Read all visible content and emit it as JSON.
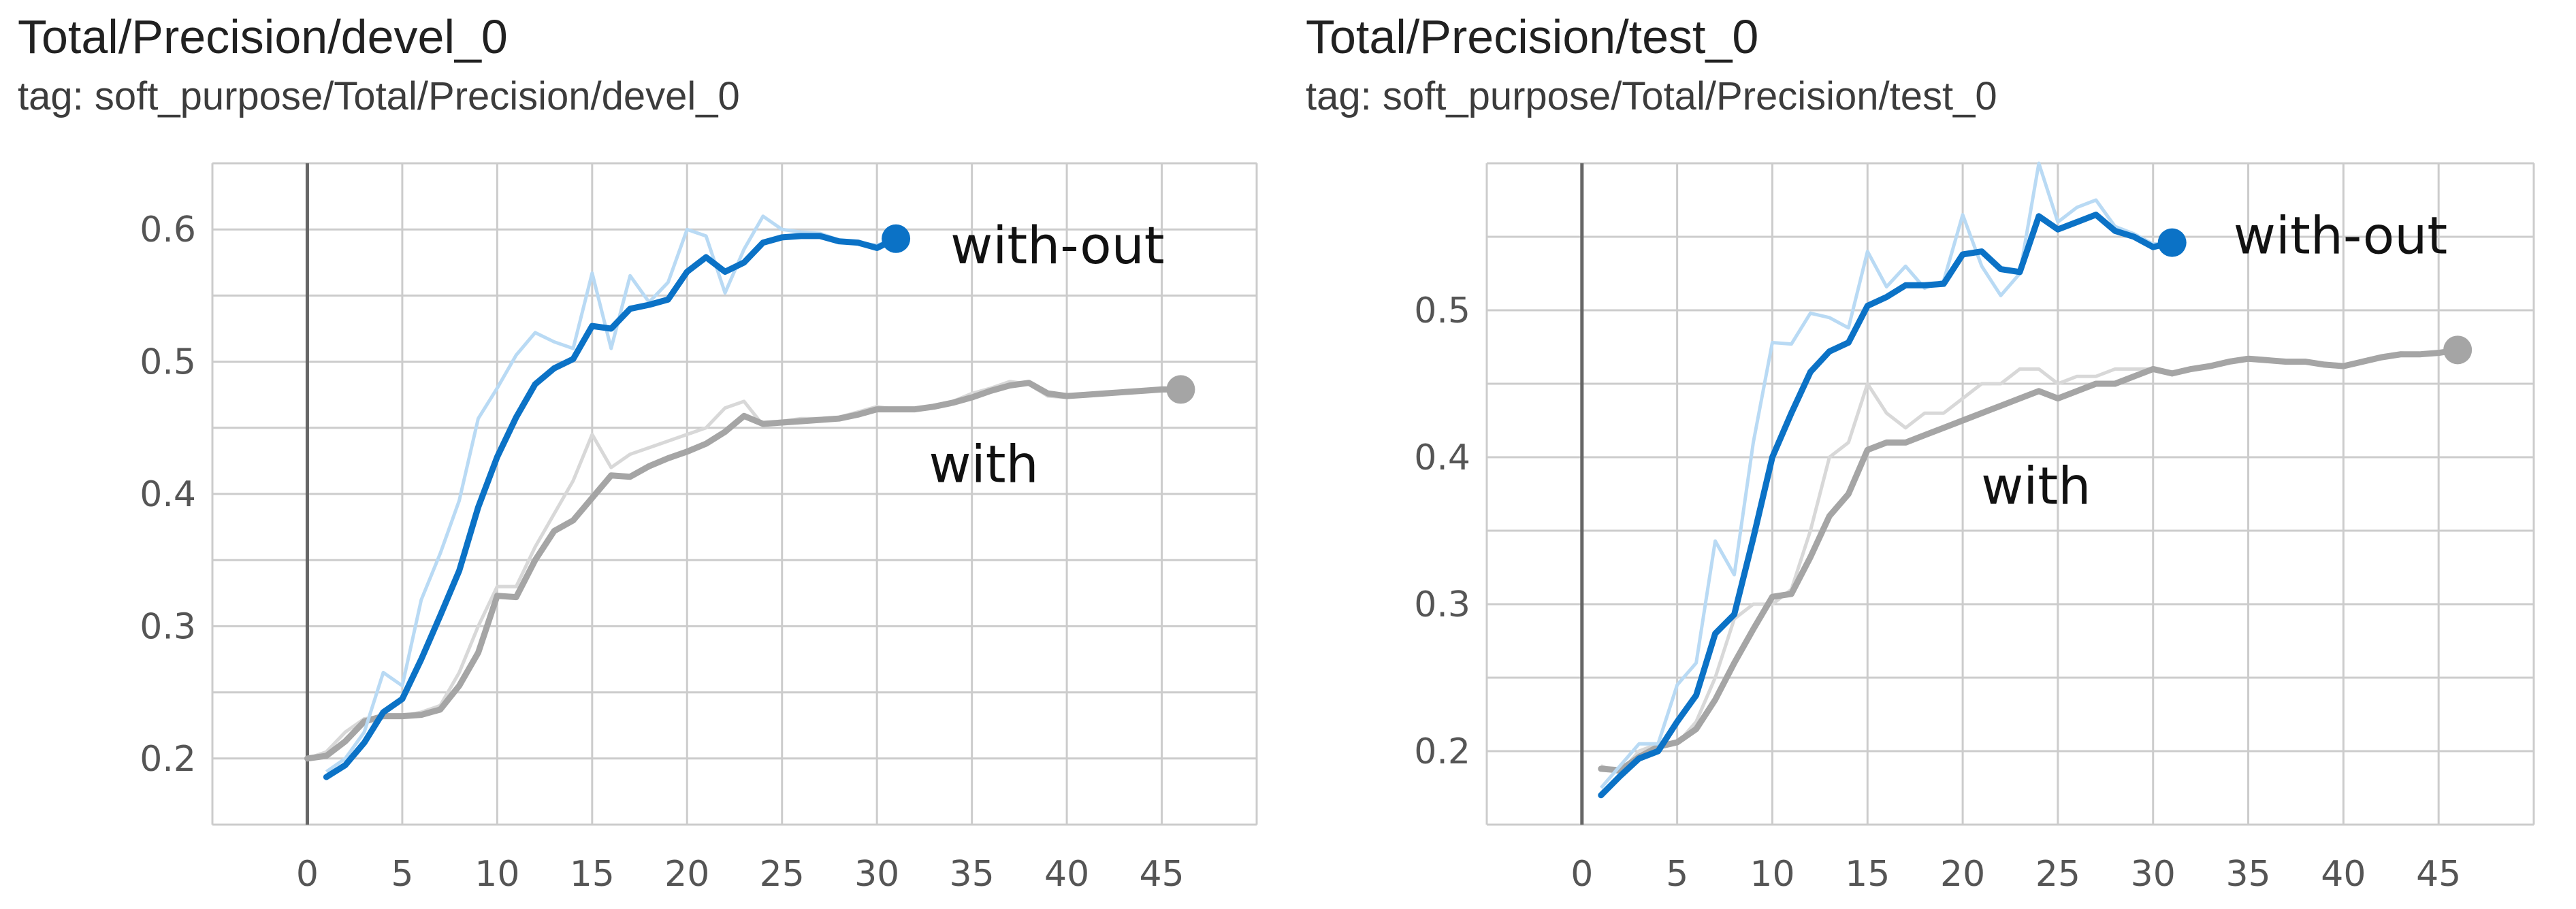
{
  "chart_data": [
    {
      "type": "line",
      "title": "Total/Precision/devel_0",
      "subtitle": "tag: soft_purpose/Total/Precision/devel_0",
      "xlim": [
        -5,
        50
      ],
      "ylim": [
        0.15,
        0.65
      ],
      "xticks": [
        0,
        5,
        10,
        15,
        20,
        25,
        30,
        35,
        40,
        45
      ],
      "yticks": [
        0.2,
        0.3,
        0.4,
        0.5,
        0.6
      ],
      "grid": true,
      "series": [
        {
          "name": "with-out",
          "color": "#0b72c6",
          "raw_color": "#b9daf4",
          "x": [
            1,
            2,
            3,
            4,
            5,
            6,
            7,
            8,
            9,
            10,
            11,
            12,
            13,
            14,
            15,
            16,
            17,
            18,
            19,
            20,
            21,
            22,
            23,
            24,
            25,
            26,
            27,
            28,
            29,
            30,
            31
          ],
          "smoothed": [
            0.186,
            0.195,
            0.212,
            0.235,
            0.245,
            0.275,
            0.308,
            0.342,
            0.39,
            0.428,
            0.458,
            0.483,
            0.495,
            0.502,
            0.527,
            0.525,
            0.54,
            0.543,
            0.547,
            0.568,
            0.579,
            0.568,
            0.575,
            0.59,
            0.594,
            0.595,
            0.595,
            0.591,
            0.59,
            0.586,
            0.593
          ],
          "raw": [
            0.19,
            0.2,
            0.22,
            0.265,
            0.255,
            0.32,
            0.355,
            0.395,
            0.457,
            0.48,
            0.505,
            0.522,
            0.515,
            0.51,
            0.567,
            0.51,
            0.565,
            0.545,
            0.56,
            0.6,
            0.595,
            0.552,
            0.585,
            0.61,
            0.6,
            0.598,
            0.597,
            0.592,
            0.59,
            0.588,
            0.593
          ]
        },
        {
          "name": "with",
          "color": "#a5a5a5",
          "raw_color": "#d8d8d8",
          "x": [
            0,
            1,
            2,
            3,
            4,
            5,
            6,
            7,
            8,
            9,
            10,
            11,
            12,
            13,
            14,
            15,
            16,
            17,
            18,
            19,
            20,
            21,
            22,
            23,
            24,
            25,
            26,
            27,
            28,
            29,
            30,
            31,
            32,
            33,
            34,
            35,
            36,
            37,
            38,
            39,
            40,
            41,
            42,
            43,
            44,
            45,
            46
          ],
          "smoothed": [
            0.2,
            0.202,
            0.213,
            0.228,
            0.232,
            0.232,
            0.233,
            0.237,
            0.255,
            0.28,
            0.323,
            0.322,
            0.35,
            0.372,
            0.38,
            0.397,
            0.414,
            0.413,
            0.421,
            0.427,
            0.432,
            0.438,
            0.447,
            0.459,
            0.453,
            0.454,
            0.455,
            0.456,
            0.457,
            0.46,
            0.464,
            0.464,
            0.464,
            0.466,
            0.469,
            0.473,
            0.478,
            0.482,
            0.484,
            0.476,
            0.474,
            0.475,
            0.476,
            0.477,
            0.478,
            0.479,
            0.479
          ],
          "raw": [
            0.2,
            0.205,
            0.22,
            0.23,
            0.232,
            0.232,
            0.235,
            0.24,
            0.265,
            0.3,
            0.33,
            0.33,
            0.36,
            0.385,
            0.41,
            0.445,
            0.42,
            0.43,
            0.435,
            0.44,
            0.445,
            0.45,
            0.465,
            0.47,
            0.452,
            0.455,
            0.457,
            0.457,
            0.458,
            0.462,
            0.466,
            0.464,
            0.463,
            0.467,
            0.47,
            0.476,
            0.48,
            0.485,
            0.483,
            0.474,
            0.473,
            0.475,
            0.476,
            0.477,
            0.478,
            0.479,
            0.479
          ]
        }
      ]
    },
    {
      "type": "line",
      "title": "Total/Precision/test_0",
      "subtitle": "tag: soft_purpose/Total/Precision/test_0",
      "xlim": [
        -5,
        50
      ],
      "ylim": [
        0.15,
        0.6
      ],
      "xticks": [
        0,
        5,
        10,
        15,
        20,
        25,
        30,
        35,
        40,
        45
      ],
      "yticks": [
        0.2,
        0.3,
        0.4,
        0.5
      ],
      "grid": true,
      "series": [
        {
          "name": "with-out",
          "color": "#0b72c6",
          "raw_color": "#b9daf4",
          "x": [
            1,
            2,
            3,
            4,
            5,
            6,
            7,
            8,
            9,
            10,
            11,
            12,
            13,
            14,
            15,
            16,
            17,
            18,
            19,
            20,
            21,
            22,
            23,
            24,
            25,
            26,
            27,
            28,
            29,
            30,
            31
          ],
          "smoothed": [
            0.17,
            0.183,
            0.195,
            0.2,
            0.22,
            0.238,
            0.28,
            0.293,
            0.345,
            0.4,
            0.43,
            0.458,
            0.472,
            0.478,
            0.503,
            0.509,
            0.517,
            0.517,
            0.518,
            0.538,
            0.54,
            0.528,
            0.526,
            0.564,
            0.555,
            0.56,
            0.565,
            0.554,
            0.55,
            0.543,
            0.546
          ],
          "raw": [
            0.175,
            0.19,
            0.205,
            0.205,
            0.245,
            0.26,
            0.343,
            0.32,
            0.41,
            0.478,
            0.477,
            0.498,
            0.495,
            0.488,
            0.54,
            0.516,
            0.53,
            0.515,
            0.52,
            0.565,
            0.53,
            0.51,
            0.525,
            0.6,
            0.56,
            0.57,
            0.575,
            0.557,
            0.552,
            0.545,
            0.546
          ]
        },
        {
          "name": "with",
          "color": "#a5a5a5",
          "raw_color": "#d8d8d8",
          "x": [
            1,
            2,
            3,
            4,
            5,
            6,
            7,
            8,
            9,
            10,
            11,
            12,
            13,
            14,
            15,
            16,
            17,
            18,
            19,
            20,
            21,
            22,
            23,
            24,
            25,
            26,
            27,
            28,
            29,
            30,
            31,
            32,
            33,
            34,
            35,
            36,
            37,
            38,
            39,
            40,
            41,
            42,
            43,
            44,
            45,
            46
          ],
          "smoothed": [
            0.188,
            0.187,
            0.196,
            0.203,
            0.206,
            0.215,
            0.235,
            0.26,
            0.283,
            0.305,
            0.307,
            0.332,
            0.36,
            0.375,
            0.405,
            0.41,
            0.41,
            0.415,
            0.42,
            0.425,
            0.43,
            0.435,
            0.44,
            0.445,
            0.44,
            0.445,
            0.45,
            0.45,
            0.455,
            0.46,
            0.457,
            0.46,
            0.462,
            0.465,
            0.467,
            0.466,
            0.465,
            0.465,
            0.463,
            0.462,
            0.465,
            0.468,
            0.47,
            0.47,
            0.471,
            0.473
          ],
          "raw": [
            0.19,
            0.185,
            0.2,
            0.205,
            0.205,
            0.22,
            0.25,
            0.29,
            0.3,
            0.3,
            0.31,
            0.35,
            0.4,
            0.41,
            0.45,
            0.43,
            0.42,
            0.43,
            0.43,
            0.44,
            0.45,
            0.45,
            0.46,
            0.46,
            0.45,
            0.455,
            0.455,
            0.46,
            0.46,
            0.46,
            0.456,
            0.46,
            0.463,
            0.466,
            0.468,
            0.467,
            0.465,
            0.465,
            0.463,
            0.462,
            0.466,
            0.469,
            0.471,
            0.47,
            0.472,
            0.473
          ]
        }
      ]
    }
  ],
  "annotations": [
    [
      {
        "text": "with-out",
        "series": 0
      },
      {
        "text": "with",
        "series": 1
      }
    ],
    [
      {
        "text": "with-out",
        "series": 0
      },
      {
        "text": "with",
        "series": 1
      }
    ]
  ]
}
